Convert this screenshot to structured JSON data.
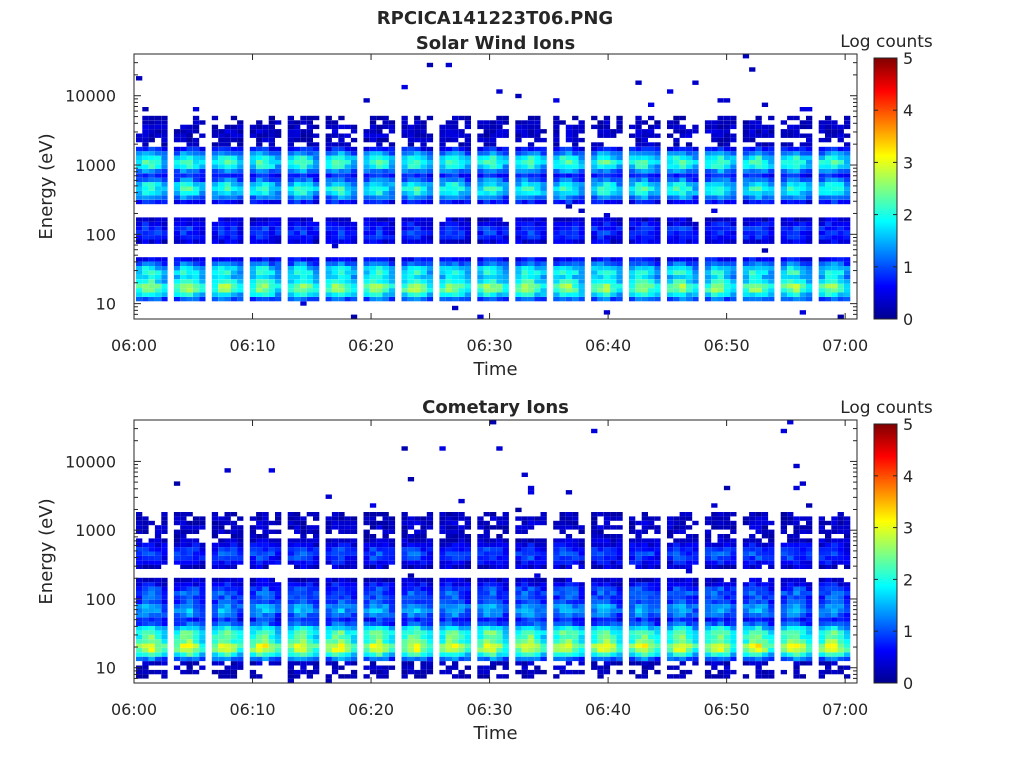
{
  "figure": {
    "file_title": "RPCICA141223T06.PNG"
  },
  "colormap": [
    "#00008f",
    "#0000ff",
    "#0080ff",
    "#00ffff",
    "#80ff80",
    "#ffff00",
    "#ff8000",
    "#ff0000",
    "#800000"
  ],
  "chart_data": [
    {
      "type": "heatmap",
      "title": "Solar Wind Ions",
      "xlabel": "Time",
      "ylabel": "Energy (eV)",
      "colorbar_label": "Log counts",
      "x_range": [
        "06:00",
        "07:01"
      ],
      "x_ticks": [
        "06:00",
        "06:10",
        "06:20",
        "06:30",
        "06:40",
        "06:50",
        "07:00"
      ],
      "y_scale": "log",
      "ylim": [
        6,
        40000
      ],
      "y_ticks": [
        10,
        100,
        1000,
        10000
      ],
      "y_tick_labels": [
        "10",
        "100",
        "1000",
        "10000"
      ],
      "clim": [
        0,
        5
      ],
      "cbar_ticks": [
        "0",
        "1",
        "2",
        "3",
        "4",
        "5"
      ],
      "scan_period_min": 3.2,
      "scan_start_times": [
        "06:00:10",
        "06:03:22",
        "06:06:34",
        "06:09:46",
        "06:12:58",
        "06:16:10",
        "06:19:22",
        "06:22:34",
        "06:25:46",
        "06:28:58",
        "06:32:10",
        "06:35:22",
        "06:38:34",
        "06:41:46",
        "06:44:58",
        "06:48:10",
        "06:51:22",
        "06:54:34",
        "06:57:46"
      ],
      "populations": [
        {
          "energy_ev": 17,
          "log_counts": 2.6
        },
        {
          "energy_ev": 28,
          "log_counts": 2.0
        },
        {
          "energy_ev": 110,
          "log_counts": 0.9
        },
        {
          "energy_ev": 450,
          "log_counts": 2.1
        },
        {
          "energy_ev": 1100,
          "log_counts": 2.2
        },
        {
          "energy_ev": 3000,
          "log_counts": 0.3
        }
      ]
    },
    {
      "type": "heatmap",
      "title": "Cometary Ions",
      "xlabel": "Time",
      "ylabel": "Energy (eV)",
      "colorbar_label": "Log counts",
      "x_range": [
        "06:00",
        "07:01"
      ],
      "x_ticks": [
        "06:00",
        "06:10",
        "06:20",
        "06:30",
        "06:40",
        "06:50",
        "07:00"
      ],
      "y_scale": "log",
      "ylim": [
        6,
        40000
      ],
      "y_ticks": [
        10,
        100,
        1000,
        10000
      ],
      "y_tick_labels": [
        "10",
        "100",
        "1000",
        "10000"
      ],
      "clim": [
        0,
        5
      ],
      "cbar_ticks": [
        "0",
        "1",
        "2",
        "3",
        "4",
        "5"
      ],
      "scan_period_min": 3.2,
      "scan_start_times": [
        "06:00:10",
        "06:03:22",
        "06:06:34",
        "06:09:46",
        "06:12:58",
        "06:16:10",
        "06:19:22",
        "06:22:34",
        "06:25:46",
        "06:28:58",
        "06:32:10",
        "06:35:22",
        "06:38:34",
        "06:41:46",
        "06:44:58",
        "06:48:10",
        "06:51:22",
        "06:54:34",
        "06:57:46"
      ],
      "populations": [
        {
          "energy_ev": 11,
          "log_counts": 0.2
        },
        {
          "energy_ev": 20,
          "log_counts": 3.0
        },
        {
          "energy_ev": 30,
          "log_counts": 2.4
        },
        {
          "energy_ev": 70,
          "log_counts": 1.5
        },
        {
          "energy_ev": 120,
          "log_counts": 1.1
        },
        {
          "energy_ev": 450,
          "log_counts": 1.0
        },
        {
          "energy_ev": 1200,
          "log_counts": 0.3
        }
      ]
    }
  ]
}
